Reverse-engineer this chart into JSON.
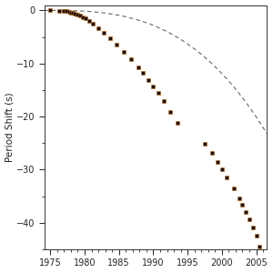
{
  "title": "",
  "xlabel": "",
  "ylabel": "Period Shift (s)",
  "xlim": [
    1974.2,
    2006.5
  ],
  "ylim": [
    -45,
    1
  ],
  "xticks": [
    1975,
    1980,
    1985,
    1990,
    1995,
    2000,
    2005
  ],
  "yticks": [
    0,
    -10,
    -20,
    -30,
    -40
  ],
  "background_color": "#ffffff",
  "dot_color": "#111111",
  "dot_edgecolor": "#cc6600",
  "line_color": "#666666",
  "curve_t0": 1975.0,
  "curve_a": -0.00065,
  "curve_b": -0.0028,
  "data_points": [
    [
      1975.0,
      0.0
    ],
    [
      1976.3,
      -0.04
    ],
    [
      1977.0,
      -0.1
    ],
    [
      1977.4,
      -0.18
    ],
    [
      1977.7,
      -0.27
    ],
    [
      1978.0,
      -0.37
    ],
    [
      1978.3,
      -0.5
    ],
    [
      1978.6,
      -0.64
    ],
    [
      1978.9,
      -0.8
    ],
    [
      1979.3,
      -1.02
    ],
    [
      1979.7,
      -1.27
    ],
    [
      1980.1,
      -1.56
    ],
    [
      1980.6,
      -1.97
    ],
    [
      1981.2,
      -2.53
    ],
    [
      1982.0,
      -3.3
    ],
    [
      1982.8,
      -4.15
    ],
    [
      1983.7,
      -5.18
    ],
    [
      1984.7,
      -6.42
    ],
    [
      1985.7,
      -7.74
    ],
    [
      1986.8,
      -9.25
    ],
    [
      1987.8,
      -10.72
    ],
    [
      1988.5,
      -11.8
    ],
    [
      1989.3,
      -13.05
    ],
    [
      1990.0,
      -14.3
    ],
    [
      1990.7,
      -15.58
    ],
    [
      1991.5,
      -17.1
    ],
    [
      1992.5,
      -19.05
    ],
    [
      1993.5,
      -21.15
    ],
    [
      1997.5,
      -25.2
    ],
    [
      1998.5,
      -26.9
    ],
    [
      1999.3,
      -28.5
    ],
    [
      2000.0,
      -30.0
    ],
    [
      2000.7,
      -31.5
    ],
    [
      2001.7,
      -33.5
    ],
    [
      2002.5,
      -35.4
    ],
    [
      2003.0,
      -36.6
    ],
    [
      2003.5,
      -38.0
    ],
    [
      2004.0,
      -39.3
    ],
    [
      2004.5,
      -40.8
    ],
    [
      2005.0,
      -42.5
    ],
    [
      2005.5,
      -44.5
    ]
  ],
  "figsize": [
    3.0,
    3.0
  ],
  "dpi": 100
}
